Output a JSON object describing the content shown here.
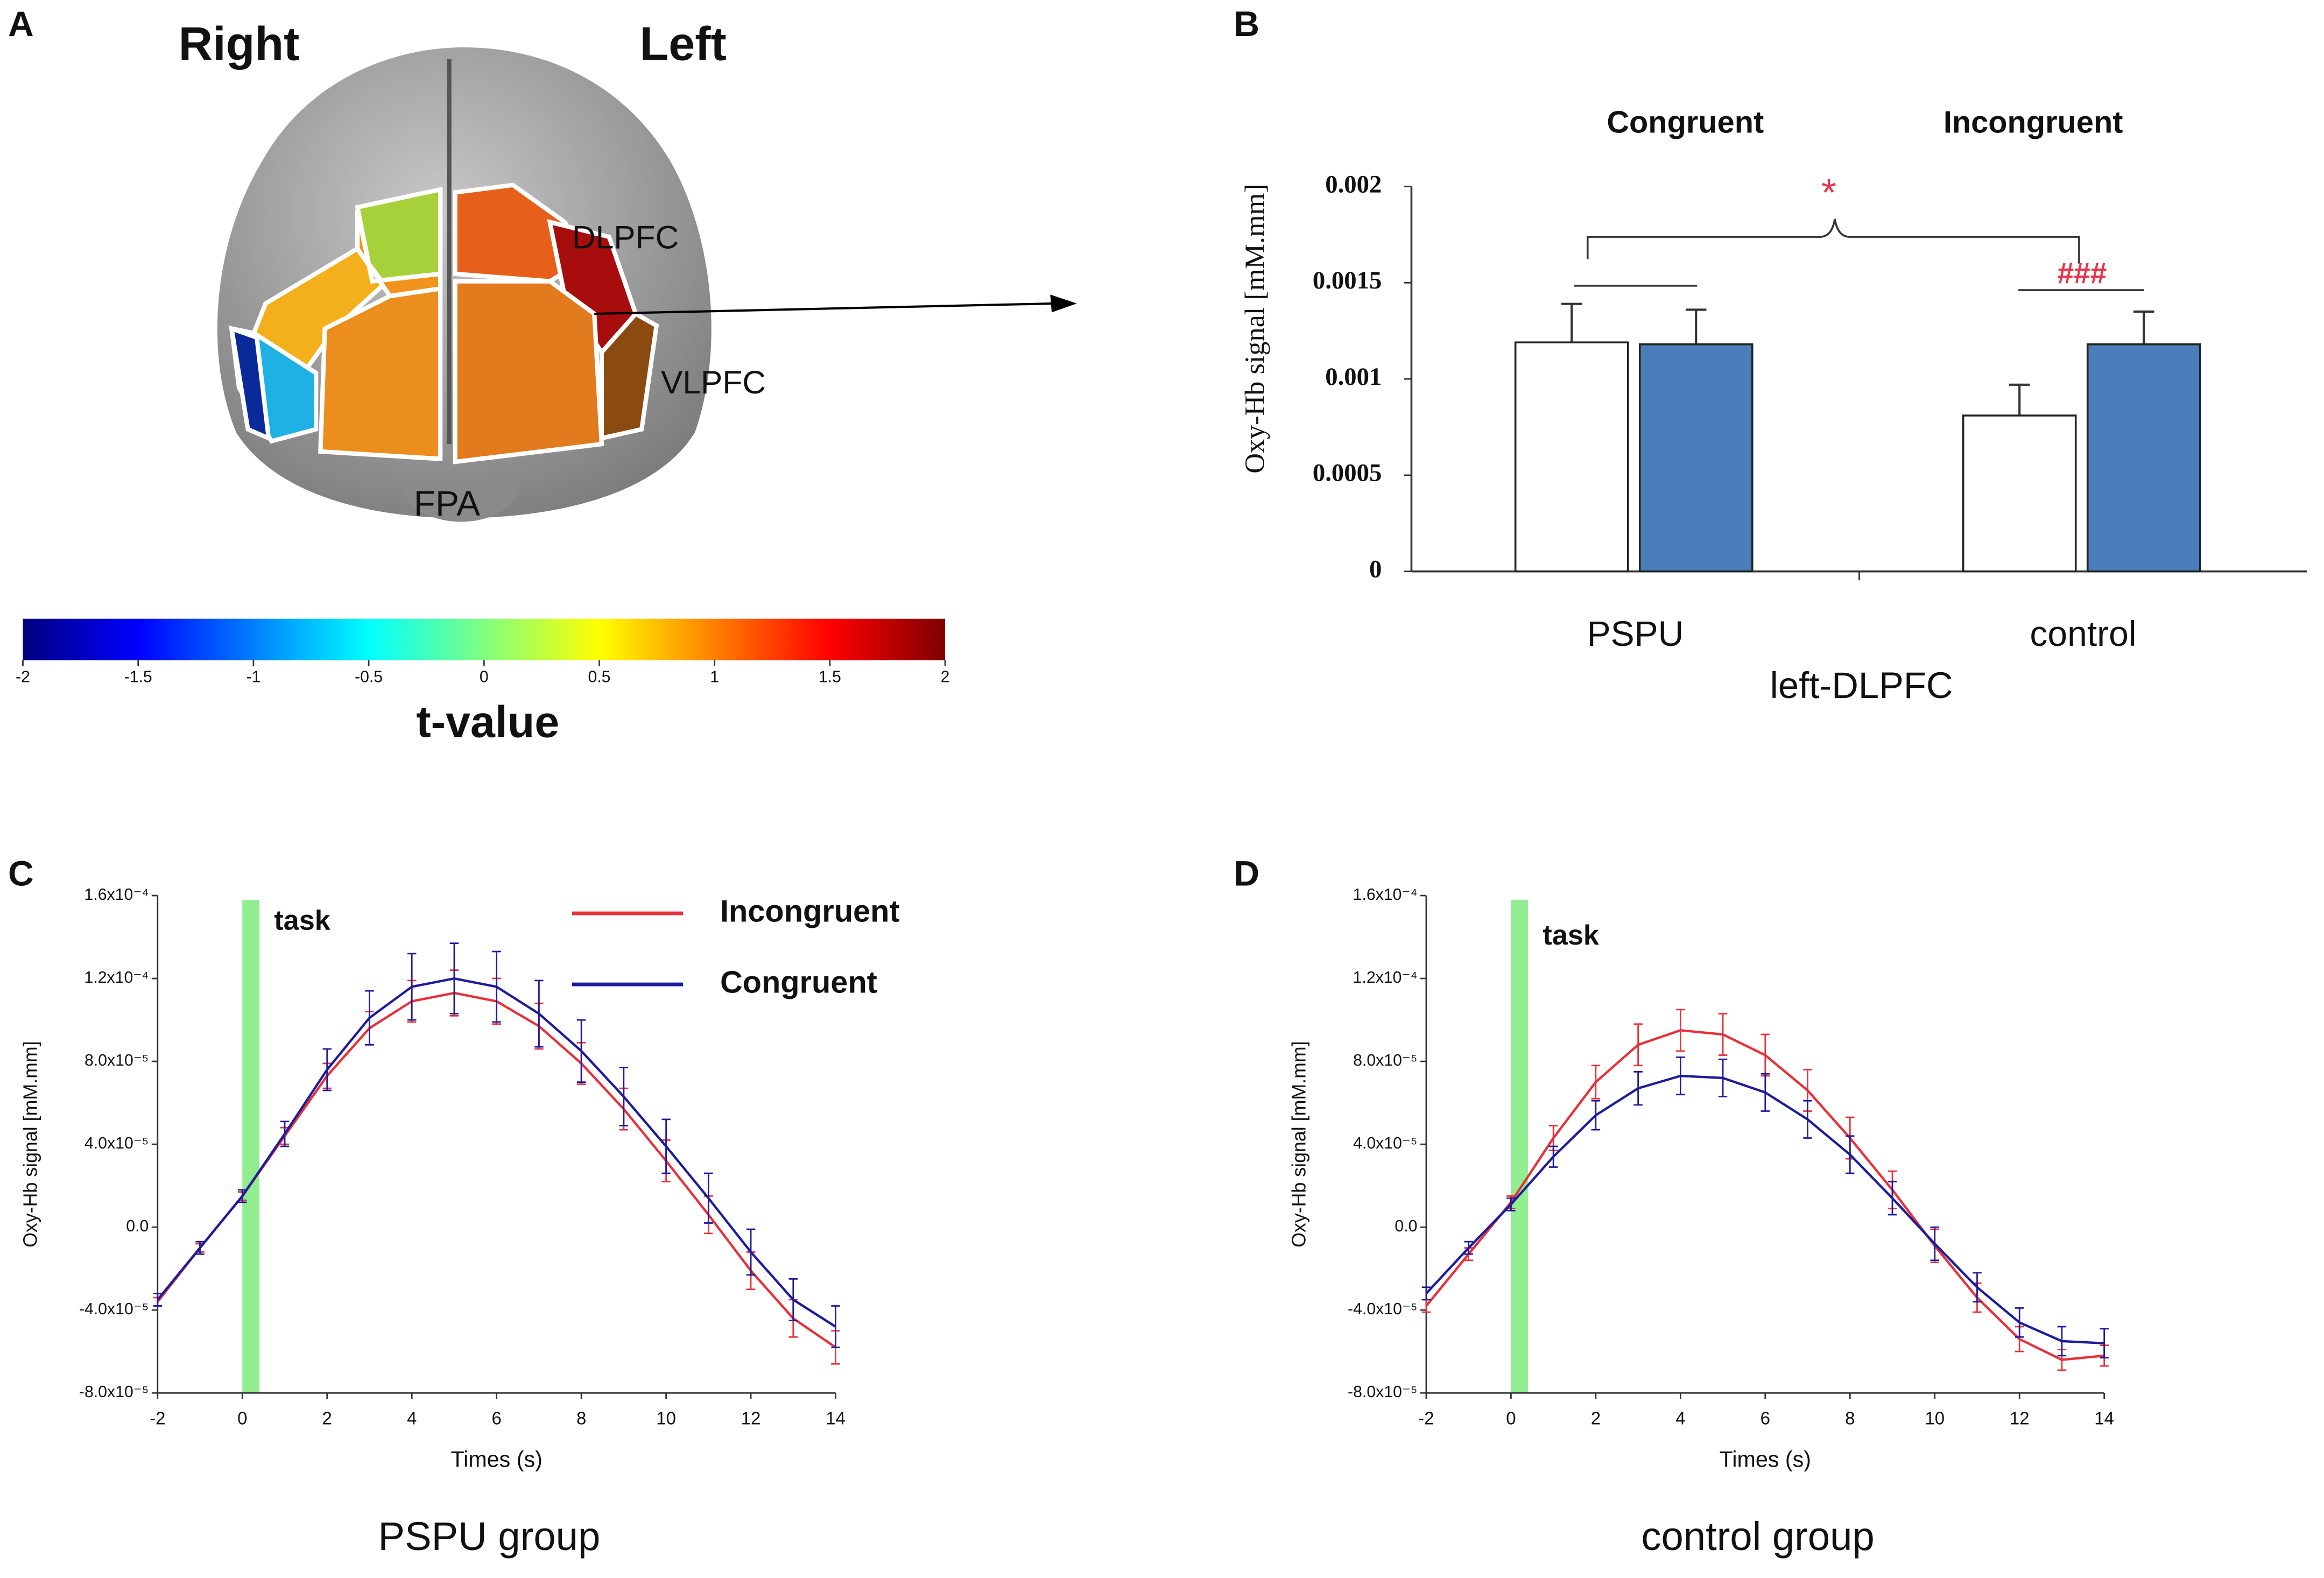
{
  "chart_data": [
    {
      "type": "colorbar",
      "panel": "A",
      "hemisphere_labels": [
        "Right",
        "Left"
      ],
      "regions": [
        "DLPFC",
        "VLPFC",
        "FPA"
      ],
      "colorbar_label": "t-value",
      "clim": [
        -2,
        2
      ],
      "cticks": [
        -2,
        -1.5,
        -1,
        -0.5,
        0,
        0.5,
        1,
        1.5,
        2
      ],
      "colormap": [
        "#00007f",
        "#0000ff",
        "#007fff",
        "#00ffff",
        "#7fff7f",
        "#ffff00",
        "#ff7f00",
        "#ff0000",
        "#7f0000"
      ]
    },
    {
      "type": "bar",
      "panel": "B",
      "ylabel": "Oxy-Hb signal [mM.mm]",
      "xlabel": "left-DLPFC",
      "categories": [
        "PSPU",
        "control"
      ],
      "series": [
        {
          "color": "#ffffff",
          "values": [
            0.00119,
            0.00081
          ],
          "errors": [
            0.0002,
            0.00016
          ]
        },
        {
          "color": "#4a7ebb",
          "values": [
            0.00118,
            0.00118
          ],
          "errors": [
            0.00018,
            0.00017
          ]
        }
      ],
      "ylim": [
        0,
        0.002
      ],
      "yticks": [
        0,
        0.0005,
        0.001,
        0.0015,
        0.002
      ],
      "annotations": [
        "Congruent",
        "Incongruent",
        "*",
        "###"
      ]
    },
    {
      "type": "line",
      "panel": "C",
      "ylabel": "Oxy-Hb signal [mM.mm]",
      "xlabel": "Times (s)",
      "caption": "PSPU group",
      "annotation": "task",
      "task_span": [
        0,
        0.4
      ],
      "legend": "top-right",
      "x": [
        -2,
        -1,
        0,
        1,
        2,
        3,
        4,
        5,
        6,
        7,
        8,
        9,
        10,
        11,
        12,
        13,
        14
      ],
      "series": [
        {
          "name": "Incongruent",
          "color": "#e8303a",
          "values": [
            -3.6e-05,
            -1e-05,
            1.5e-05,
            4.4e-05,
            7.3e-05,
            9.6e-05,
            0.000109,
            0.000113,
            0.000109,
            9.7e-05,
            7.9e-05,
            5.7e-05,
            3.2e-05,
            6e-06,
            -2.1e-05,
            -4.4e-05,
            -5.8e-05
          ],
          "errors": [
            2e-06,
            2e-06,
            2e-06,
            4e-06,
            6e-06,
            8e-06,
            1e-05,
            1.1e-05,
            1.1e-05,
            1.1e-05,
            1e-05,
            1e-05,
            1e-05,
            9e-06,
            9e-06,
            9e-06,
            8e-06
          ]
        },
        {
          "name": "Congruent",
          "color": "#1c1c9c",
          "values": [
            -3.5e-05,
            -1e-05,
            1.5e-05,
            4.5e-05,
            7.6e-05,
            0.000101,
            0.000116,
            0.00012,
            0.000116,
            0.000103,
            8.5e-05,
            6.3e-05,
            3.9e-05,
            1.4e-05,
            -1.2e-05,
            -3.5e-05,
            -4.8e-05
          ],
          "errors": [
            3e-06,
            3e-06,
            3e-06,
            6e-06,
            1e-05,
            1.3e-05,
            1.6e-05,
            1.7e-05,
            1.7e-05,
            1.6e-05,
            1.5e-05,
            1.4e-05,
            1.3e-05,
            1.2e-05,
            1.1e-05,
            1e-05,
            1e-05
          ]
        }
      ],
      "xlim": [
        -2,
        14
      ],
      "xticks": [
        -2,
        0,
        2,
        4,
        6,
        8,
        10,
        12,
        14
      ],
      "ylim": [
        -8e-05,
        0.00016
      ],
      "yticks": [
        {
          "value": -8e-05,
          "label": "-8.0x10⁻⁵"
        },
        {
          "value": -4e-05,
          "label": "-4.0x10⁻⁵"
        },
        {
          "value": 0,
          "label": "0.0"
        },
        {
          "value": 4e-05,
          "label": "4.0x10⁻⁵"
        },
        {
          "value": 8e-05,
          "label": "8.0x10⁻⁵"
        },
        {
          "value": 0.00012,
          "label": "1.2x10⁻⁴"
        },
        {
          "value": 0.00016,
          "label": "1.6x10⁻⁴"
        }
      ]
    },
    {
      "type": "line",
      "panel": "D",
      "ylabel": "Oxy-Hb signal [mM.mm]",
      "xlabel": "Times (s)",
      "caption": "control group",
      "annotation": "task",
      "task_span": [
        0,
        0.4
      ],
      "x": [
        -2,
        -1,
        0,
        1,
        2,
        3,
        4,
        5,
        6,
        7,
        8,
        9,
        10,
        11,
        12,
        13,
        14
      ],
      "series": [
        {
          "color": "#e8303a",
          "values": [
            -3.8e-05,
            -1.3e-05,
            1.2e-05,
            4.3e-05,
            7e-05,
            8.8e-05,
            9.5e-05,
            9.3e-05,
            8.3e-05,
            6.6e-05,
            4.3e-05,
            1.8e-05,
            -9e-06,
            -3.4e-05,
            -5.4e-05,
            -6.4e-05,
            -6.2e-05
          ],
          "errors": [
            3e-06,
            3e-06,
            3e-06,
            6e-06,
            8e-06,
            1e-05,
            1e-05,
            1e-05,
            1e-05,
            1e-05,
            1e-05,
            9e-06,
            8e-06,
            7e-06,
            6e-06,
            5e-06,
            5e-06
          ]
        },
        {
          "color": "#1c1c9c",
          "values": [
            -3.2e-05,
            -1e-05,
            1.1e-05,
            3.4e-05,
            5.4e-05,
            6.7e-05,
            7.3e-05,
            7.2e-05,
            6.5e-05,
            5.2e-05,
            3.5e-05,
            1.4e-05,
            -8e-06,
            -2.9e-05,
            -4.6e-05,
            -5.5e-05,
            -5.6e-05
          ],
          "errors": [
            3e-06,
            3e-06,
            3e-06,
            5e-06,
            7e-06,
            8e-06,
            9e-06,
            9e-06,
            9e-06,
            9e-06,
            9e-06,
            8e-06,
            8e-06,
            7e-06,
            7e-06,
            7e-06,
            7e-06
          ]
        }
      ],
      "xlim": [
        -2,
        14
      ],
      "xticks": [
        -2,
        0,
        2,
        4,
        6,
        8,
        10,
        12,
        14
      ],
      "ylim": [
        -8e-05,
        0.00016
      ],
      "yticks": [
        {
          "value": -8e-05,
          "label": "-8.0x10⁻⁵"
        },
        {
          "value": -4e-05,
          "label": "-4.0x10⁻⁵"
        },
        {
          "value": 0,
          "label": "0.0"
        },
        {
          "value": 4e-05,
          "label": "4.0x10⁻⁵"
        },
        {
          "value": 8e-05,
          "label": "8.0x10⁻⁵"
        },
        {
          "value": 0.00012,
          "label": "1.2x10⁻⁴"
        },
        {
          "value": 0.00016,
          "label": "1.6x10⁻⁴"
        }
      ]
    }
  ]
}
